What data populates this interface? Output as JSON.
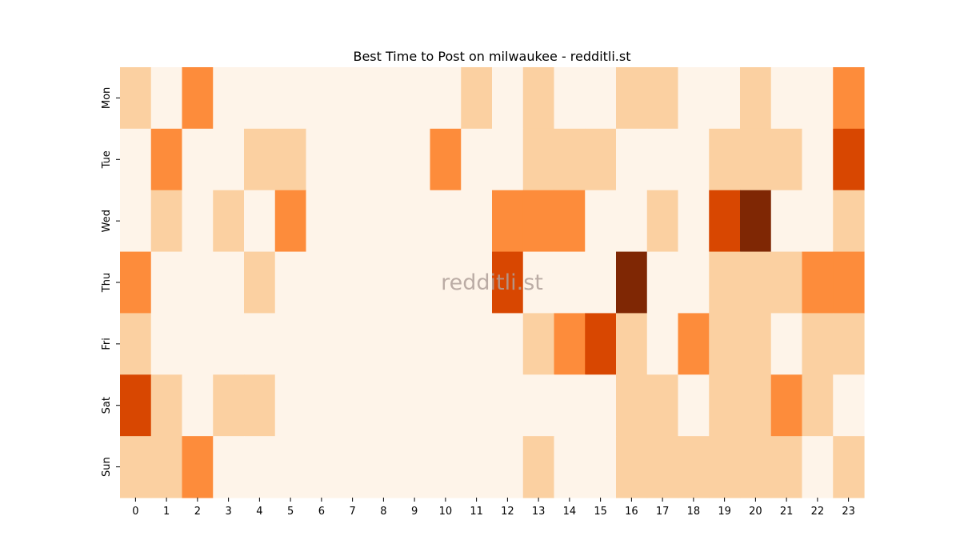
{
  "chart_data": {
    "type": "heatmap",
    "title": "Best Time to Post on milwaukee - redditli.st",
    "watermark": "redditli.st",
    "x_categories": [
      "0",
      "1",
      "2",
      "3",
      "4",
      "5",
      "6",
      "7",
      "8",
      "9",
      "10",
      "11",
      "12",
      "13",
      "14",
      "15",
      "16",
      "17",
      "18",
      "19",
      "20",
      "21",
      "22",
      "23"
    ],
    "y_categories": [
      "Mon",
      "Tue",
      "Wed",
      "Thu",
      "Fri",
      "Sat",
      "Sun"
    ],
    "colormap": "Oranges",
    "level_colors": [
      "#fef4e9",
      "#fbd0a1",
      "#fd8c3b",
      "#d84701",
      "#7f2704"
    ],
    "values": [
      [
        1,
        0,
        2,
        0,
        0,
        0,
        0,
        0,
        0,
        0,
        0,
        1,
        0,
        1,
        0,
        0,
        1,
        1,
        0,
        0,
        1,
        0,
        0,
        2
      ],
      [
        0,
        2,
        0,
        0,
        1,
        1,
        0,
        0,
        0,
        0,
        2,
        0,
        0,
        1,
        1,
        1,
        0,
        0,
        0,
        1,
        1,
        1,
        0,
        3
      ],
      [
        0,
        1,
        0,
        1,
        0,
        2,
        0,
        0,
        0,
        0,
        0,
        0,
        2,
        2,
        2,
        0,
        0,
        1,
        0,
        3,
        4,
        0,
        0,
        1
      ],
      [
        2,
        0,
        0,
        0,
        1,
        0,
        0,
        0,
        0,
        0,
        0,
        0,
        3,
        0,
        0,
        0,
        4,
        0,
        0,
        1,
        1,
        1,
        2,
        2
      ],
      [
        1,
        0,
        0,
        0,
        0,
        0,
        0,
        0,
        0,
        0,
        0,
        0,
        0,
        1,
        2,
        3,
        1,
        0,
        2,
        1,
        1,
        0,
        1,
        1
      ],
      [
        3,
        1,
        0,
        1,
        1,
        0,
        0,
        0,
        0,
        0,
        0,
        0,
        0,
        0,
        0,
        0,
        1,
        1,
        0,
        1,
        1,
        2,
        1,
        0
      ],
      [
        1,
        1,
        2,
        0,
        0,
        0,
        0,
        0,
        0,
        0,
        0,
        0,
        0,
        1,
        0,
        0,
        1,
        1,
        1,
        1,
        1,
        1,
        0,
        1
      ]
    ]
  }
}
